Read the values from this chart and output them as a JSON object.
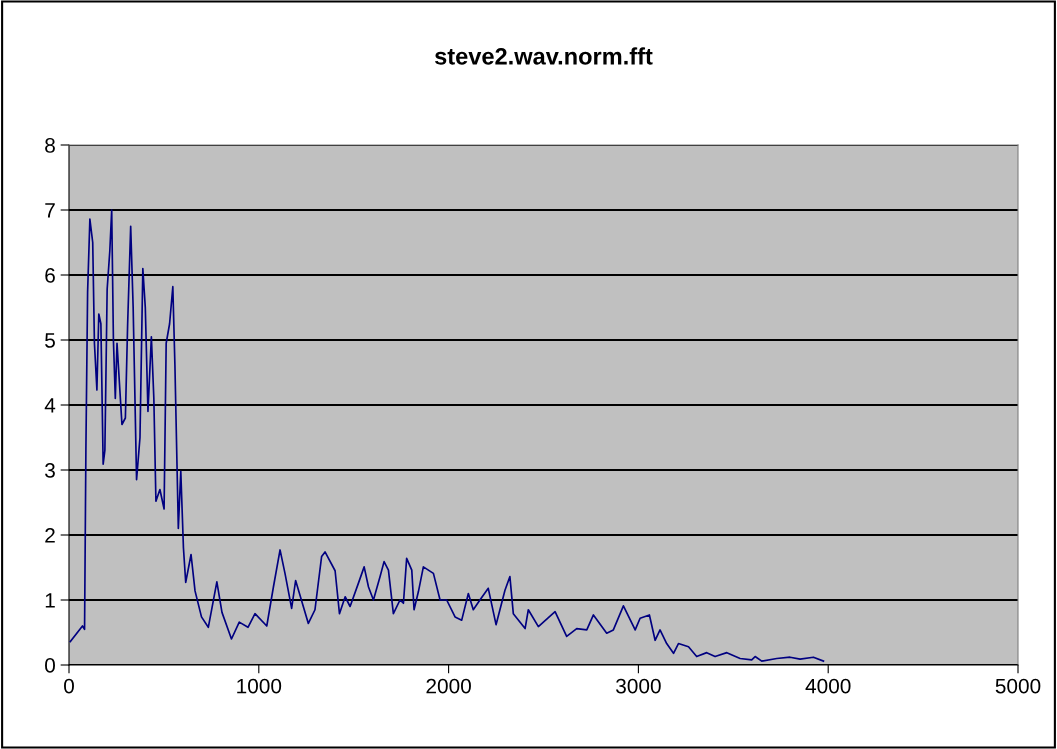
{
  "chart_data": {
    "type": "line",
    "title": "steve2.wav.norm.fft",
    "xlim": [
      0,
      5000
    ],
    "xticks": [
      0,
      1000,
      2000,
      3000,
      4000,
      5000
    ],
    "ylim": [
      0,
      8
    ],
    "yticks": [
      0,
      1,
      2,
      3,
      4,
      5,
      6,
      7,
      8
    ],
    "grid": "y",
    "marker": "none",
    "line_style": "solid",
    "series": [
      {
        "color": "#000080",
        "x": [
          7,
          71,
          82,
          89,
          98,
          110,
          125,
          134,
          147,
          157,
          168,
          180,
          189,
          201,
          215,
          225,
          234,
          244,
          253,
          279,
          297,
          309,
          325,
          338,
          356,
          374,
          389,
          402,
          416,
          434,
          447,
          458,
          479,
          501,
          512,
          530,
          547,
          558,
          576,
          589,
          603,
          615,
          643,
          664,
          698,
          734,
          779,
          806,
          856,
          897,
          943,
          980,
          1042,
          1077,
          1112,
          1138,
          1173,
          1194,
          1261,
          1296,
          1331,
          1349,
          1402,
          1425,
          1455,
          1481,
          1525,
          1555,
          1578,
          1604,
          1639,
          1660,
          1683,
          1709,
          1744,
          1762,
          1779,
          1806,
          1818,
          1841,
          1867,
          1920,
          1955,
          1990,
          2034,
          2069,
          2104,
          2130,
          2165,
          2209,
          2250,
          2297,
          2323,
          2341,
          2403,
          2420,
          2473,
          2561,
          2622,
          2675,
          2728,
          2763,
          2833,
          2868,
          2921,
          2983,
          3009,
          3058,
          3088,
          3114,
          3149,
          3185,
          3211,
          3264,
          3307,
          3360,
          3404,
          3466,
          3536,
          3597,
          3615,
          3650,
          3729,
          3799,
          3852,
          3922,
          3975
        ],
        "values": [
          0.36,
          0.6,
          0.55,
          3.3,
          5.74,
          6.86,
          6.5,
          4.95,
          4.23,
          5.4,
          5.25,
          3.09,
          3.3,
          5.78,
          6.37,
          7.0,
          5.0,
          4.1,
          4.95,
          3.7,
          3.8,
          5.25,
          6.75,
          5.5,
          2.85,
          3.5,
          6.1,
          5.5,
          3.9,
          5.05,
          4.1,
          2.52,
          2.7,
          2.4,
          4.95,
          5.25,
          5.82,
          4.62,
          2.1,
          2.98,
          1.8,
          1.27,
          1.7,
          1.14,
          0.74,
          0.58,
          1.28,
          0.81,
          0.4,
          0.66,
          0.58,
          0.79,
          0.6,
          1.2,
          1.77,
          1.41,
          0.87,
          1.3,
          0.64,
          0.85,
          1.67,
          1.74,
          1.45,
          0.79,
          1.05,
          0.9,
          1.26,
          1.51,
          1.2,
          1.0,
          1.36,
          1.59,
          1.46,
          0.79,
          1.0,
          0.95,
          1.64,
          1.46,
          0.85,
          1.13,
          1.51,
          1.41,
          1.0,
          1.0,
          0.74,
          0.69,
          1.1,
          0.85,
          1.0,
          1.18,
          0.62,
          1.15,
          1.36,
          0.79,
          0.56,
          0.85,
          0.59,
          0.82,
          0.44,
          0.56,
          0.54,
          0.77,
          0.49,
          0.54,
          0.91,
          0.54,
          0.72,
          0.77,
          0.38,
          0.54,
          0.33,
          0.18,
          0.33,
          0.28,
          0.13,
          0.19,
          0.13,
          0.19,
          0.1,
          0.08,
          0.13,
          0.06,
          0.1,
          0.12,
          0.09,
          0.12,
          0.06
        ]
      }
    ]
  }
}
